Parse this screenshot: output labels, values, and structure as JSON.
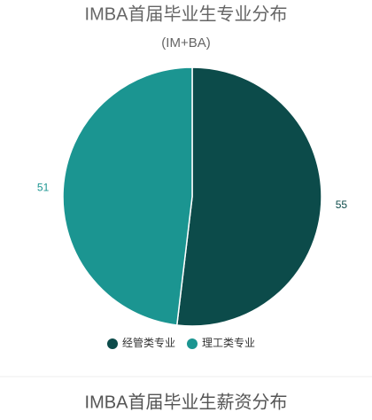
{
  "chart_data": {
    "type": "pie",
    "title": "IMBA首届毕业生专业分布",
    "subtitle": "(IM+BA)",
    "categories": [
      "经管类专业",
      "理工类专业"
    ],
    "values": [
      55,
      51
    ],
    "colors": [
      "#0c4b4a",
      "#1b9591"
    ],
    "legend": "bottom"
  },
  "next_chart": {
    "title": "IMBA首届毕业生薪资分布"
  }
}
